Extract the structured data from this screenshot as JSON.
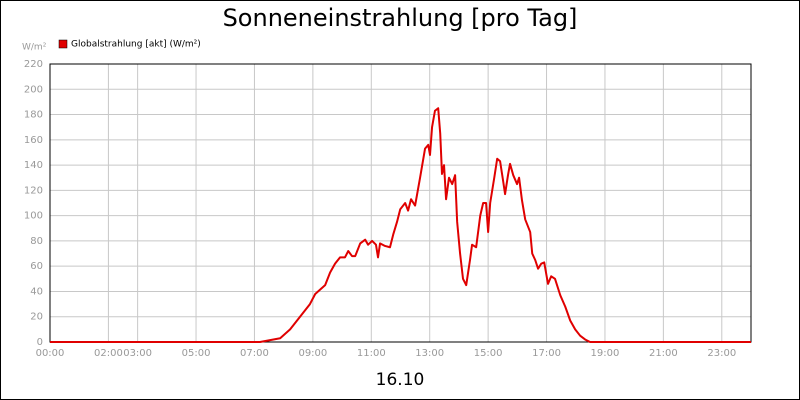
{
  "chart_data": {
    "type": "line",
    "title": "Sonneneinstrahlung [pro Tag]",
    "y_unit": "W/m²",
    "x_label": "16.10",
    "xlim": [
      0,
      24
    ],
    "ylim": [
      0,
      220
    ],
    "yticks": [
      0,
      20,
      40,
      60,
      80,
      100,
      120,
      140,
      160,
      180,
      200,
      220
    ],
    "xticks": [
      {
        "value": 0,
        "label": "00:00"
      },
      {
        "value": 2,
        "label": "02:00"
      },
      {
        "value": 3,
        "label": "03:00"
      },
      {
        "value": 5,
        "label": "05:00"
      },
      {
        "value": 7,
        "label": "07:00"
      },
      {
        "value": 9,
        "label": "09:00"
      },
      {
        "value": 11,
        "label": "11:00"
      },
      {
        "value": 13,
        "label": "13:00"
      },
      {
        "value": 15,
        "label": "15:00"
      },
      {
        "value": 17,
        "label": "17:00"
      },
      {
        "value": 19,
        "label": "19:00"
      },
      {
        "value": 21,
        "label": "21:00"
      },
      {
        "value": 23,
        "label": "23:00"
      }
    ],
    "grid": true,
    "legend": "top-left",
    "series": [
      {
        "name": "Globalstrahlung [akt] (W/m²)",
        "color": "#e00000",
        "x": [
          0,
          7.19,
          7.88,
          8.22,
          8.56,
          8.9,
          9.08,
          9.42,
          9.59,
          9.76,
          9.93,
          10.1,
          10.21,
          10.34,
          10.45,
          10.62,
          10.79,
          10.89,
          11.03,
          11.16,
          11.23,
          11.3,
          11.47,
          11.64,
          11.75,
          11.88,
          11.99,
          12.16,
          12.26,
          12.36,
          12.5,
          12.67,
          12.84,
          12.95,
          13.01,
          13.08,
          13.18,
          13.29,
          13.36,
          13.42,
          13.49,
          13.56,
          13.66,
          13.77,
          13.87,
          13.94,
          14.04,
          14.14,
          14.25,
          14.38,
          14.45,
          14.59,
          14.73,
          14.83,
          14.93,
          15.0,
          15.07,
          15.21,
          15.31,
          15.41,
          15.51,
          15.58,
          15.68,
          15.75,
          15.86,
          15.99,
          16.06,
          16.16,
          16.27,
          16.44,
          16.51,
          16.61,
          16.71,
          16.82,
          16.92,
          17.05,
          17.16,
          17.29,
          17.47,
          17.64,
          17.81,
          17.98,
          18.15,
          18.32,
          18.49,
          24
        ],
        "values": [
          0,
          0,
          3,
          10,
          20,
          30,
          38,
          45,
          55,
          62,
          67,
          67,
          72,
          68,
          68,
          78,
          81,
          77,
          80,
          77,
          67,
          78,
          76,
          75,
          85,
          95,
          105,
          110,
          104,
          113,
          108,
          130,
          153,
          156,
          148,
          170,
          183,
          185,
          165,
          133,
          140,
          113,
          130,
          125,
          132,
          95,
          70,
          50,
          45,
          65,
          77,
          75,
          100,
          110,
          110,
          87,
          110,
          130,
          145,
          143,
          128,
          117,
          132,
          141,
          132,
          125,
          130,
          112,
          97,
          87,
          70,
          65,
          58,
          62,
          63,
          46,
          52,
          50,
          37,
          28,
          17,
          10,
          5,
          2,
          0,
          0
        ]
      }
    ]
  }
}
